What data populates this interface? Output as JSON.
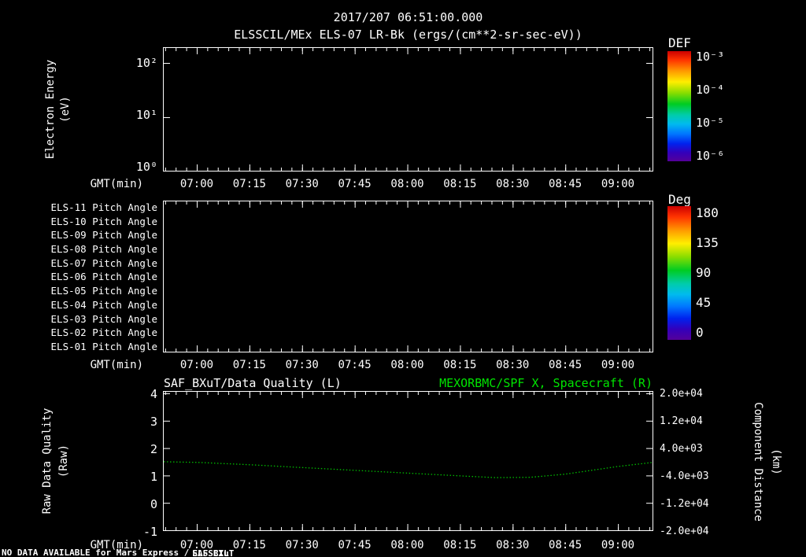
{
  "window": {
    "datetime_title": "2017/207 06:51:00.000",
    "status": {
      "prefix": "NO DATA AVAILABLE for Mars Express /",
      "overlap_a": "ELSSCIL",
      "overlap_b": "SAF_BXuT"
    }
  },
  "colors": {
    "background": "#000000",
    "foreground": "#ffffff",
    "green_text": "#00e400",
    "line_green": "#00bb00"
  },
  "time_axis": {
    "label": "GMT(min)",
    "ticks": [
      "07:00",
      "07:15",
      "07:30",
      "07:45",
      "08:00",
      "08:15",
      "08:30",
      "08:45",
      "09:00"
    ]
  },
  "spectrogram": {
    "title": "ELSSCIL/MEx ELS-07 LR-Bk  (ergs/(cm**2-sr-sec-eV))",
    "ylabel_1": "Electron Energy",
    "ylabel_2": "(eV)",
    "yticks": [
      "10²",
      "10¹",
      "10⁰"
    ],
    "colorbar_title": "DEF",
    "colorbar_ticks": [
      "10⁻³",
      "10⁻⁴",
      "10⁻⁵",
      "10⁻⁶"
    ]
  },
  "pitch": {
    "row_labels": [
      "ELS-11 Pitch Angle",
      "ELS-10 Pitch Angle",
      "ELS-09 Pitch Angle",
      "ELS-08 Pitch Angle",
      "ELS-07 Pitch Angle",
      "ELS-06 Pitch Angle",
      "ELS-05 Pitch Angle",
      "ELS-04 Pitch Angle",
      "ELS-03 Pitch Angle",
      "ELS-02 Pitch Angle",
      "ELS-01 Pitch Angle"
    ],
    "colorbar_title": "Deg",
    "colorbar_ticks": [
      "180",
      "135",
      "90",
      "45",
      "0"
    ]
  },
  "quality": {
    "title_left": "SAF_BXuT/Data Quality (L)",
    "title_right": "MEXORBMC/SPF X, Spacecraft (R)",
    "ylabel_left_1": "Raw Data Quality",
    "ylabel_left_2": "(Raw)",
    "yticks_left": [
      "4",
      "3",
      "2",
      "1",
      "0",
      "-1"
    ],
    "ylabel_right_1": "Component Distance",
    "ylabel_right_2": "(km)",
    "yticks_right": [
      "2.0e+04",
      "1.2e+04",
      "4.0e+03",
      "-4.0e+03",
      "-1.2e+04",
      "-2.0e+04"
    ]
  },
  "chart_data": [
    {
      "type": "heatmap",
      "title": "ELSSCIL/MEx ELS-07 LR-Bk",
      "units": "ergs/(cm**2-sr-sec-eV)",
      "xlabel": "GMT(min)",
      "x_ticks": [
        "07:00",
        "07:15",
        "07:30",
        "07:45",
        "08:00",
        "08:15",
        "08:30",
        "08:45",
        "09:00"
      ],
      "ylabel": "Electron Energy (eV)",
      "yscale": "log",
      "y_ticks": [
        "10^0",
        "10^1",
        "10^2"
      ],
      "colorbar": {
        "label": "DEF",
        "scale": "log",
        "ticks": [
          "10^-3",
          "10^-4",
          "10^-5",
          "10^-6"
        ]
      },
      "values": [],
      "note": "empty panel - no data plotted"
    },
    {
      "type": "heatmap",
      "xlabel": "GMT(min)",
      "x_ticks": [
        "07:00",
        "07:15",
        "07:30",
        "07:45",
        "08:00",
        "08:15",
        "08:30",
        "08:45",
        "09:00"
      ],
      "y_categories_bottom_to_top": [
        "ELS-01 Pitch Angle",
        "ELS-02 Pitch Angle",
        "ELS-03 Pitch Angle",
        "ELS-04 Pitch Angle",
        "ELS-05 Pitch Angle",
        "ELS-06 Pitch Angle",
        "ELS-07 Pitch Angle",
        "ELS-08 Pitch Angle",
        "ELS-09 Pitch Angle",
        "ELS-10 Pitch Angle",
        "ELS-11 Pitch Angle"
      ],
      "colorbar": {
        "label": "Deg",
        "lim": [
          0,
          180
        ],
        "ticks": [
          0,
          45,
          90,
          135,
          180
        ]
      },
      "values": [],
      "note": "empty panel - no data plotted"
    },
    {
      "type": "line",
      "title_left": "SAF_BXuT/Data Quality (L)",
      "title_right": "MEXORBMC/SPF X, Spacecraft (R)",
      "xlabel": "GMT(min)",
      "x_domain": [
        "06:50",
        "09:10"
      ],
      "x_ticks": [
        "07:00",
        "07:15",
        "07:30",
        "07:45",
        "08:00",
        "08:15",
        "08:30",
        "08:45",
        "09:00"
      ],
      "y_left": {
        "label": "Raw Data Quality (Raw)",
        "lim": [
          -1,
          4
        ],
        "ticks": [
          4,
          3,
          2,
          1,
          0,
          -1
        ]
      },
      "y_right": {
        "label": "Component Distance (km)",
        "lim": [
          -20000,
          20000
        ],
        "ticks": [
          20000,
          12000,
          4000,
          -4000,
          -12000,
          -20000
        ]
      },
      "series": [
        {
          "name": "MEXORBMC/SPF X, Spacecraft (R)",
          "axis": "right",
          "color": "#00bb00",
          "style": "dotted",
          "points": [
            [
              "06:50",
              -200
            ],
            [
              "07:00",
              -400
            ],
            [
              "07:15",
              -1100
            ],
            [
              "07:30",
              -1900
            ],
            [
              "07:45",
              -2700
            ],
            [
              "08:00",
              -3500
            ],
            [
              "08:15",
              -4300
            ],
            [
              "08:25",
              -4800
            ],
            [
              "08:35",
              -4700
            ],
            [
              "08:45",
              -3800
            ],
            [
              "09:00",
              -1600
            ],
            [
              "09:10",
              -400
            ]
          ]
        }
      ]
    }
  ]
}
